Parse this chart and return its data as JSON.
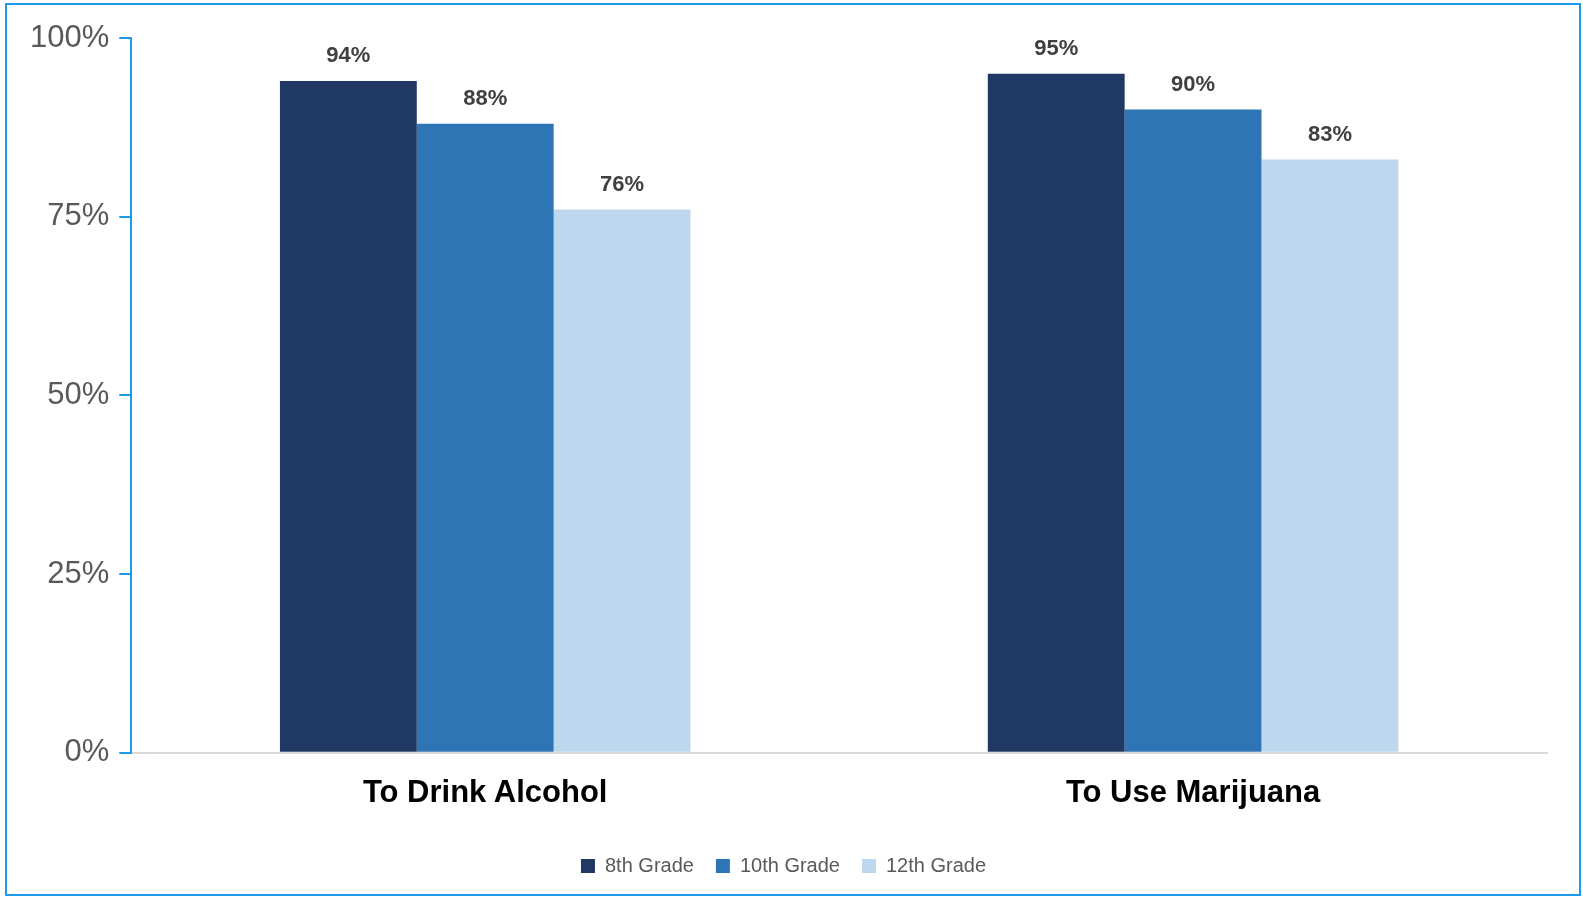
{
  "chart_data": {
    "type": "bar",
    "categories": [
      "To Drink Alcohol",
      "To Use Marijuana"
    ],
    "series": [
      {
        "name": "8th Grade",
        "color": "#1f3864",
        "values": [
          94,
          95
        ],
        "value_labels": [
          "94%",
          "95%"
        ]
      },
      {
        "name": "10th Grade",
        "color": "#2e75b6",
        "values": [
          88,
          90
        ],
        "value_labels": [
          "88%",
          "90%"
        ]
      },
      {
        "name": "12th Grade",
        "color": "#bdd7ee",
        "values": [
          76,
          83
        ],
        "value_labels": [
          "76%",
          "83%"
        ]
      }
    ],
    "ylim": [
      0,
      100
    ],
    "yticks": [
      {
        "value": 0,
        "label": "0%"
      },
      {
        "value": 25,
        "label": "25%"
      },
      {
        "value": 50,
        "label": "50%"
      },
      {
        "value": 75,
        "label": "75%"
      },
      {
        "value": 100,
        "label": "100%"
      }
    ],
    "grid": false,
    "legend": "bottom"
  }
}
